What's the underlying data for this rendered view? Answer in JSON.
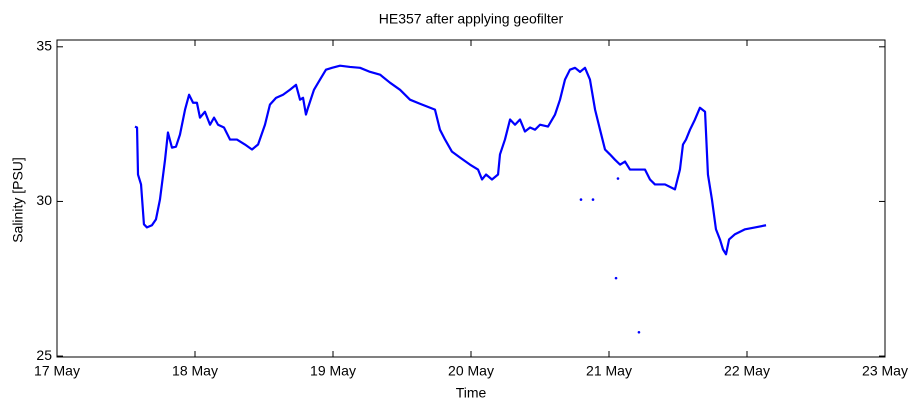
{
  "chart_data": {
    "type": "line",
    "title": "HE357 after applying geofilter",
    "xlabel": "Time",
    "ylabel": "Salinity [PSU]",
    "xlim": [
      17,
      23
    ],
    "xticks": [
      {
        "value": 17,
        "label": "17 May"
      },
      {
        "value": 18,
        "label": "18 May"
      },
      {
        "value": 19,
        "label": "19 May"
      },
      {
        "value": 20,
        "label": "20 May"
      },
      {
        "value": 21,
        "label": "21 May"
      },
      {
        "value": 22,
        "label": "22 May"
      },
      {
        "value": 23,
        "label": "23 May"
      }
    ],
    "ylim": [
      24.97,
      35.22
    ],
    "yticks": [
      25,
      30,
      35
    ],
    "grid": false,
    "series": [
      {
        "style": "line",
        "color": "#0000ff",
        "x": [
          17.565,
          17.58,
          17.587,
          17.609,
          17.63,
          17.652,
          17.688,
          17.717,
          17.746,
          17.783,
          17.804,
          17.833,
          17.862,
          17.891,
          17.928,
          17.957,
          17.986,
          18.014,
          18.036,
          18.072,
          18.109,
          18.138,
          18.167,
          18.21,
          18.254,
          18.304,
          18.362,
          18.413,
          18.457,
          18.507,
          18.543,
          18.587,
          18.638,
          18.688,
          18.732,
          18.761,
          18.783,
          18.804,
          18.819,
          18.862,
          18.906,
          18.949,
          18.993,
          19.051,
          19.123,
          19.196,
          19.268,
          19.341,
          19.413,
          19.486,
          19.558,
          19.63,
          19.739,
          19.775,
          19.812,
          19.862,
          19.92,
          19.993,
          20.051,
          20.08,
          20.109,
          20.152,
          20.196,
          20.21,
          20.246,
          20.283,
          20.319,
          20.355,
          20.391,
          20.428,
          20.464,
          20.5,
          20.558,
          20.609,
          20.645,
          20.681,
          20.717,
          20.754,
          20.79,
          20.826,
          20.862,
          20.899,
          20.935,
          20.971,
          21.007,
          21.043,
          21.08,
          21.116,
          21.152,
          21.188,
          21.261,
          21.297,
          21.333,
          21.406,
          21.478,
          21.514,
          21.536,
          21.558,
          21.587,
          21.623,
          21.659,
          21.696,
          21.717,
          21.746,
          21.775,
          21.804,
          21.826,
          21.848,
          21.87,
          21.913,
          21.986,
          22.058,
          22.138
        ],
        "values": [
          32.42,
          32.39,
          30.87,
          30.55,
          29.26,
          29.16,
          29.23,
          29.42,
          30.06,
          31.35,
          32.23,
          31.74,
          31.77,
          32.16,
          32.97,
          33.45,
          33.19,
          33.19,
          32.71,
          32.9,
          32.48,
          32.71,
          32.48,
          32.39,
          32.0,
          32.0,
          31.84,
          31.68,
          31.84,
          32.48,
          33.13,
          33.35,
          33.45,
          33.61,
          33.77,
          33.29,
          33.35,
          32.81,
          33.03,
          33.61,
          33.94,
          34.26,
          34.32,
          34.39,
          34.35,
          34.32,
          34.19,
          34.1,
          33.84,
          33.61,
          33.29,
          33.16,
          32.97,
          32.32,
          32.0,
          31.61,
          31.42,
          31.19,
          31.03,
          30.71,
          30.87,
          30.71,
          30.87,
          31.52,
          32.0,
          32.65,
          32.48,
          32.65,
          32.26,
          32.39,
          32.32,
          32.48,
          32.42,
          32.81,
          33.29,
          33.94,
          34.26,
          34.32,
          34.19,
          34.32,
          33.94,
          32.97,
          32.32,
          31.68,
          31.52,
          31.35,
          31.19,
          31.29,
          31.03,
          31.03,
          31.03,
          30.71,
          30.55,
          30.55,
          30.39,
          31.03,
          31.84,
          32.0,
          32.32,
          32.65,
          33.03,
          32.9,
          30.87,
          30.06,
          29.1,
          28.77,
          28.45,
          28.29,
          28.77,
          28.94,
          29.1,
          29.16,
          29.23
        ]
      },
      {
        "style": "dots",
        "color": "#0000ff",
        "x": [
          20.797,
          20.884,
          21.051,
          21.217,
          21.065
        ],
        "values": [
          30.06,
          30.06,
          27.52,
          25.77,
          30.74
        ]
      }
    ]
  }
}
